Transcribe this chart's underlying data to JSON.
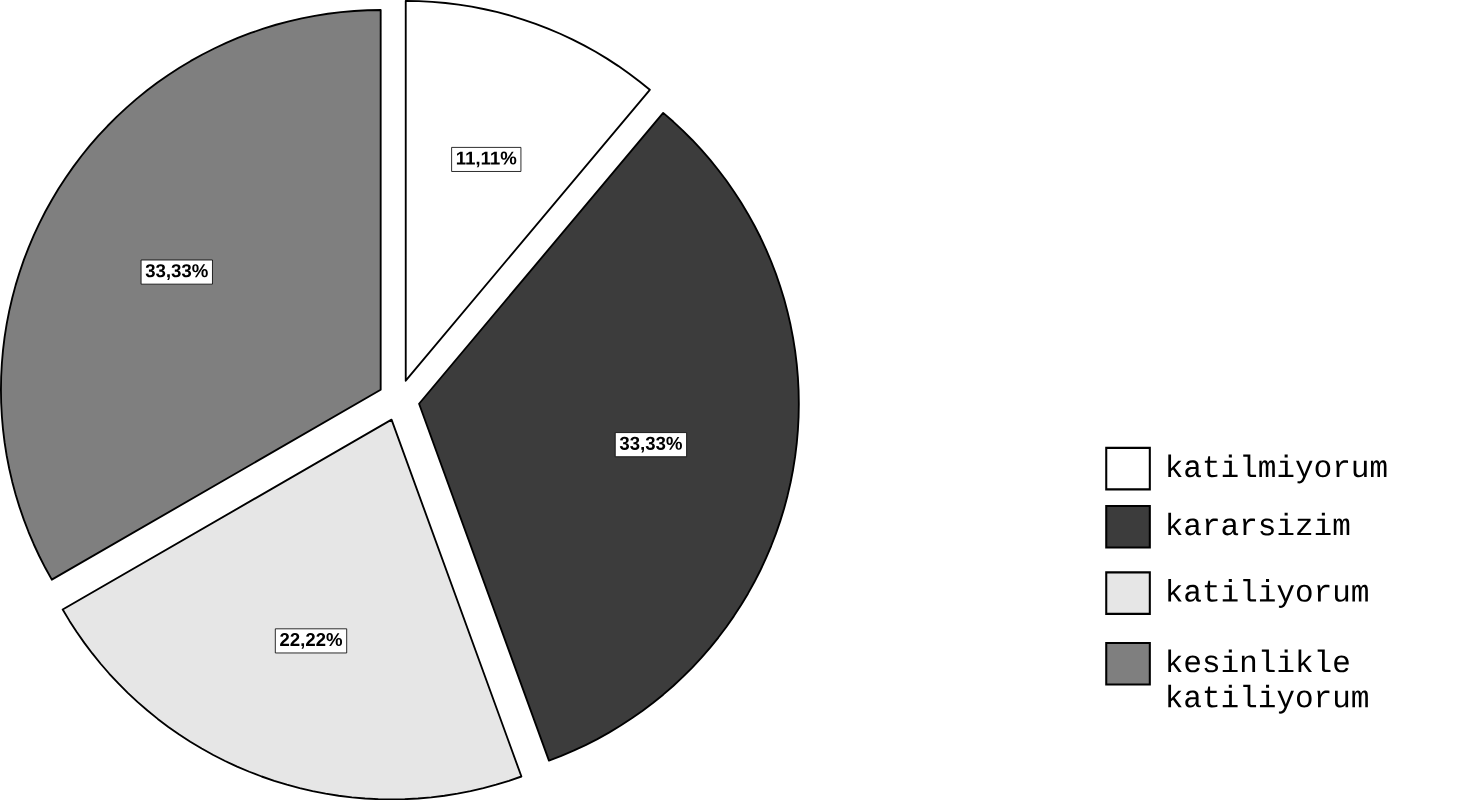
{
  "chart_data": {
    "type": "pie",
    "categories": [
      "katilmiyorum",
      "kararsizim",
      "katiliyorum",
      "kesinlikle katiliyorum"
    ],
    "values": [
      11.11,
      33.33,
      22.22,
      33.33
    ],
    "value_labels": [
      "11,11%",
      "33,33%",
      "22,22%",
      "33,33%"
    ],
    "colors": [
      "#ffffff",
      "#3c3c3c",
      "#e6e6e6",
      "#7f7f7f"
    ],
    "legend": "right"
  }
}
